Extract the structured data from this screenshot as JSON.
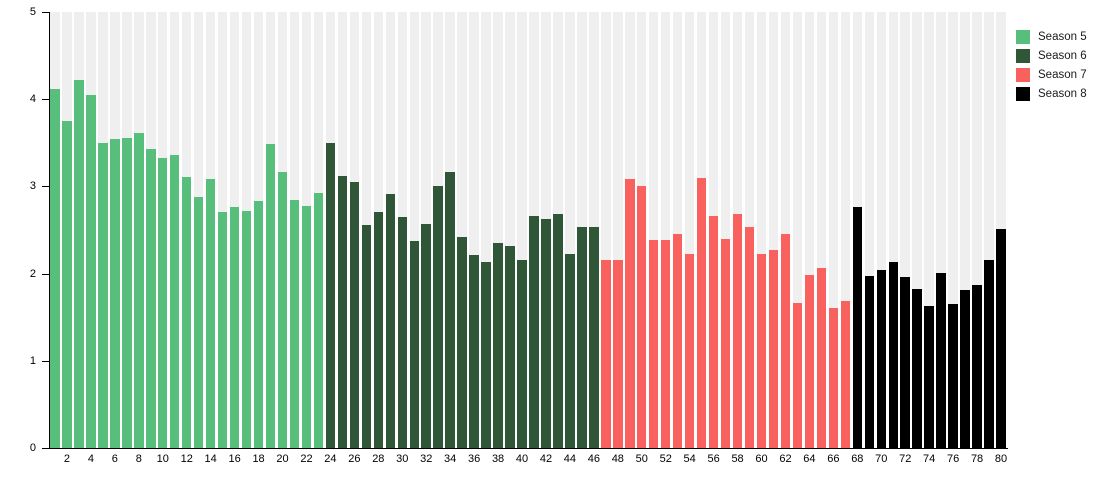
{
  "chart_data": {
    "type": "bar",
    "title": "",
    "xlabel": "",
    "ylabel": "",
    "ylim": [
      0,
      5
    ],
    "yticks": [
      0,
      1,
      2,
      3,
      4,
      5
    ],
    "xticks": [
      2,
      4,
      6,
      8,
      10,
      12,
      14,
      16,
      18,
      20,
      22,
      24,
      26,
      28,
      30,
      32,
      34,
      36,
      38,
      40,
      42,
      44,
      46,
      48,
      50,
      52,
      54,
      56,
      58,
      60,
      62,
      64,
      66,
      68,
      70,
      72,
      74,
      76,
      78,
      80
    ],
    "total_bars": 80,
    "grid": "background-stripes",
    "stripe_color": "#efefef",
    "legend_position": "top-right",
    "series": [
      {
        "name": "Season 5",
        "color": "#57be7c",
        "episodes": [
          1,
          23
        ],
        "values": [
          4.12,
          3.75,
          4.22,
          4.05,
          3.5,
          3.54,
          3.56,
          3.61,
          3.43,
          3.33,
          3.36,
          3.11,
          2.88,
          3.09,
          2.71,
          2.76,
          2.72,
          2.83,
          3.49,
          3.16,
          2.84,
          2.77,
          2.92
        ]
      },
      {
        "name": "Season 6",
        "color": "#2f5637",
        "episodes": [
          24,
          46
        ],
        "values": [
          3.5,
          3.12,
          3.05,
          2.56,
          2.71,
          2.91,
          2.65,
          2.37,
          2.57,
          3.0,
          3.16,
          2.42,
          2.21,
          2.13,
          2.35,
          2.32,
          2.16,
          2.66,
          2.63,
          2.68,
          2.22,
          2.53,
          2.53
        ]
      },
      {
        "name": "Season 7",
        "color": "#f9615f",
        "episodes": [
          47,
          67
        ],
        "values": [
          2.16,
          2.16,
          3.08,
          3.01,
          2.39,
          2.39,
          2.46,
          2.22,
          3.1,
          2.66,
          2.4,
          2.68,
          2.53,
          2.22,
          2.27,
          2.45,
          1.66,
          1.98,
          2.06,
          1.6,
          1.69
        ]
      },
      {
        "name": "Season 8",
        "color": "#000000",
        "episodes": [
          68,
          80
        ],
        "values": [
          2.76,
          1.97,
          2.04,
          2.13,
          1.96,
          1.82,
          1.63,
          2.01,
          1.65,
          1.81,
          1.87,
          2.16,
          2.51
        ]
      }
    ]
  }
}
